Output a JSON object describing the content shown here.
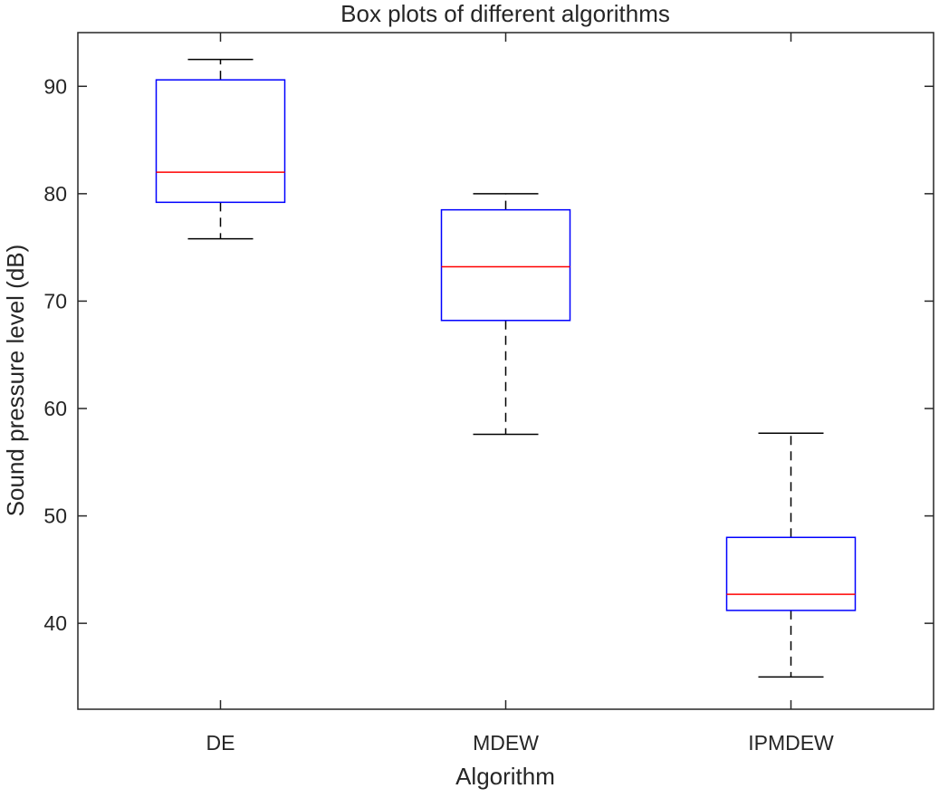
{
  "chart_data": {
    "type": "box",
    "title": "Box plots of different algorithms",
    "xlabel": "Algorithm",
    "ylabel": "Sound pressure level (dB)",
    "ylim": [
      32,
      95
    ],
    "yticks": [
      40,
      50,
      60,
      70,
      80,
      90
    ],
    "grid": false,
    "categories": [
      "DE",
      "MDEW",
      "IPMDEW"
    ],
    "boxes": [
      {
        "name": "DE",
        "whisker_low": 75.8,
        "q1": 79.2,
        "median": 82.0,
        "q3": 90.6,
        "whisker_high": 92.5
      },
      {
        "name": "MDEW",
        "whisker_low": 57.6,
        "q1": 68.2,
        "median": 73.2,
        "q3": 78.5,
        "whisker_high": 80.0
      },
      {
        "name": "IPMDEW",
        "whisker_low": 35.0,
        "q1": 41.2,
        "median": 42.7,
        "q3": 48.0,
        "whisker_high": 57.7
      }
    ],
    "colors": {
      "box": "#0000ff",
      "median": "#ff0000",
      "whisker": "#000000",
      "axes": "#262626"
    }
  }
}
